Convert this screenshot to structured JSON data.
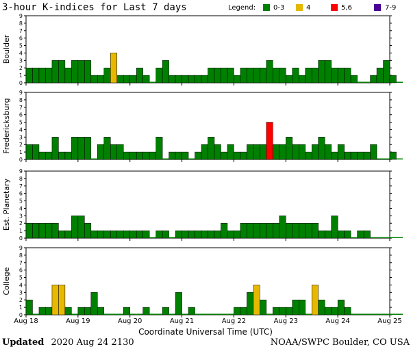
{
  "title": "3-hour K-indices for Last 7 days",
  "legend": {
    "label": "Legend:",
    "items": [
      {
        "label": "0-3",
        "color": "#008000"
      },
      {
        "label": "4",
        "color": "#e6b800"
      },
      {
        "label": "5,6",
        "color": "#ff0000"
      },
      {
        "label": "7-9",
        "color": "#4b0096"
      }
    ]
  },
  "footer": {
    "updated_bold": "Updated",
    "updated_value": "2020 Aug 24 2130",
    "source": "NOAA/SWPC Boulder, CO USA"
  },
  "chart_data": {
    "type": "bar",
    "xlabel": "Coordinate Universal Time (UTC)",
    "x_ticks": [
      "Aug 18",
      "Aug 19",
      "Aug 20",
      "Aug 21",
      "Aug 22",
      "Aug 23",
      "Aug 24",
      "Aug 25"
    ],
    "y_ticks": [
      "0",
      "1",
      "2",
      "3",
      "4",
      "5",
      "6",
      "7",
      "8",
      "9"
    ],
    "ylim": [
      0,
      9
    ],
    "intervals_per_day": 8,
    "panels": [
      {
        "name": "Boulder",
        "values": [
          2,
          2,
          2,
          2,
          3,
          3,
          2,
          3,
          3,
          3,
          1,
          1,
          2,
          4,
          1,
          1,
          1,
          2,
          1,
          0,
          2,
          3,
          1,
          1,
          1,
          1,
          1,
          1,
          2,
          2,
          2,
          2,
          1,
          2,
          2,
          2,
          2,
          3,
          2,
          2,
          1,
          2,
          1,
          2,
          2,
          3,
          3,
          2,
          2,
          2,
          1,
          0,
          0,
          1,
          2,
          3,
          1,
          0
        ]
      },
      {
        "name": "Fredericksburg",
        "values": [
          2,
          2,
          1,
          1,
          3,
          1,
          1,
          3,
          3,
          3,
          0,
          2,
          3,
          2,
          2,
          1,
          1,
          1,
          1,
          1,
          3,
          0,
          1,
          1,
          1,
          0,
          1,
          2,
          3,
          2,
          1,
          2,
          1,
          1,
          2,
          2,
          2,
          5,
          2,
          2,
          3,
          2,
          2,
          1,
          2,
          3,
          2,
          1,
          2,
          1,
          1,
          1,
          1,
          2,
          0,
          0,
          1,
          0
        ]
      },
      {
        "name": "Est. Planetary",
        "values": [
          2,
          2,
          2,
          2,
          2,
          1,
          1,
          3,
          3,
          2,
          1,
          1,
          1,
          1,
          1,
          1,
          1,
          1,
          1,
          0,
          1,
          1,
          0,
          1,
          1,
          1,
          1,
          1,
          1,
          1,
          2,
          1,
          1,
          2,
          2,
          2,
          2,
          2,
          2,
          3,
          2,
          2,
          2,
          2,
          2,
          1,
          1,
          3,
          1,
          1,
          0,
          1,
          1,
          0,
          0,
          0,
          0,
          0
        ]
      },
      {
        "name": "College",
        "values": [
          2,
          0,
          1,
          1,
          4,
          4,
          1,
          0,
          1,
          1,
          3,
          1,
          0,
          0,
          0,
          1,
          0,
          0,
          1,
          0,
          0,
          1,
          0,
          3,
          0,
          1,
          0,
          0,
          0,
          0,
          0,
          0,
          1,
          1,
          3,
          4,
          2,
          0,
          1,
          1,
          1,
          2,
          2,
          0,
          4,
          2,
          1,
          1,
          2,
          1,
          0,
          0,
          0,
          0,
          0,
          0,
          0,
          0
        ]
      }
    ]
  }
}
